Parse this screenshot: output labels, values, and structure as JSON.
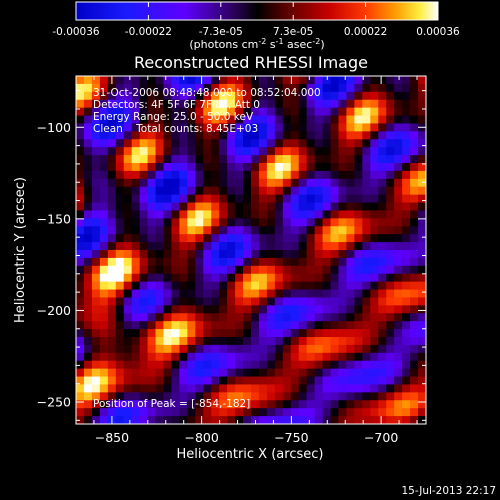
{
  "chart_data": {
    "type": "heatmap",
    "title": "Reconstructed RHESSI Image",
    "colorbar": {
      "ticks": [
        "-0.00036",
        "-0.00022",
        "-7.3e-05",
        "7.3e-05",
        "0.00022",
        "0.00036"
      ],
      "unit_parts": {
        "prefix": "(photons cm",
        "exp1": "-2",
        "mid1": " s",
        "exp2": "-1",
        "mid2": " asec",
        "exp3": "-2",
        "suffix": ")"
      },
      "range": [
        -0.00036,
        0.00036
      ],
      "colormap": "rhessi-blue-red-yellow-white"
    },
    "xlabel": "Heliocentric X (arcsec)",
    "ylabel": "Heliocentric Y (arcsec)",
    "xlim": [
      -870,
      -675
    ],
    "ylim": [
      -262,
      -72
    ],
    "xticks": [
      {
        "value": -850,
        "label": "−850"
      },
      {
        "value": -800,
        "label": "−800"
      },
      {
        "value": -750,
        "label": "−750"
      },
      {
        "value": -700,
        "label": "−700"
      }
    ],
    "yticks": [
      {
        "value": -100,
        "label": "−100"
      },
      {
        "value": -150,
        "label": "−150"
      },
      {
        "value": -200,
        "label": "−200"
      },
      {
        "value": -250,
        "label": "−250"
      }
    ],
    "info_lines": [
      "31-Oct-2006 08:48:48.000 to 08:52:04.000",
      "Detectors: 4F 5F 6F 7F 8F, Att 0",
      "Energy Range: 25.0 - 50.0 keV",
      "Clean    Total counts: 8.45E+03"
    ],
    "peak_label": "Position of Peak = [-854,-182]",
    "peak_position": [
      -854,
      -182
    ],
    "timestamp": "15-Jul-2013 22:17"
  }
}
